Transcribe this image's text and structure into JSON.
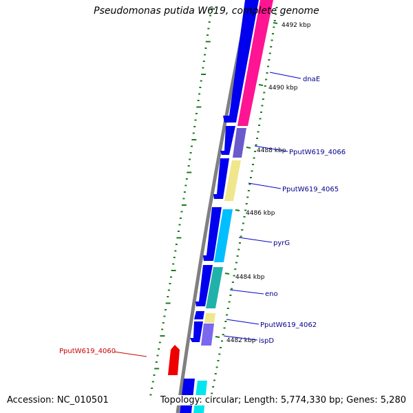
{
  "title": "Pseudomonas putida W619, complete genome",
  "accession_label": "Accession: NC_010501",
  "summary_label": "Topology: circular; Length: 5,774,330 bp; Genes: 5,280",
  "colors": {
    "backbone": "#808080",
    "forward_strand": "#0000ee",
    "ruler": "#1a7a1a",
    "gene_label": "#00008b",
    "highlight_label": "#cc0000",
    "highlight_gene": "#ee0000"
  },
  "ruler_labels": [
    "4492 kbp",
    "4490 kbp",
    "4488 kbp",
    "4486 kbp",
    "4484 kbp",
    "4482 kbp"
  ],
  "gene_labels": [
    {
      "text": "dnaE",
      "color": "#00008b"
    },
    {
      "text": "PputW619_4066",
      "color": "#00008b"
    },
    {
      "text": "PputW619_4065",
      "color": "#00008b"
    },
    {
      "text": "pyrG",
      "color": "#00008b"
    },
    {
      "text": "eno",
      "color": "#00008b"
    },
    {
      "text": "PputW619_4062",
      "color": "#00008b"
    },
    {
      "text": "ispD",
      "color": "#00008b"
    },
    {
      "text": "PputW619_4060",
      "color": "#cc0000"
    }
  ],
  "category_colors": {
    "dnaE": "#ff1493",
    "PputW619_4066": "#6a5acd",
    "PputW619_4065": "#f0e68c",
    "pyrG": "#00bfff",
    "eno": "#20b2aa",
    "PputW619_4062_top": "#f0e68c",
    "PputW619_4062_bottom": "#7b68ee",
    "next_gene": "#00e5ee"
  }
}
